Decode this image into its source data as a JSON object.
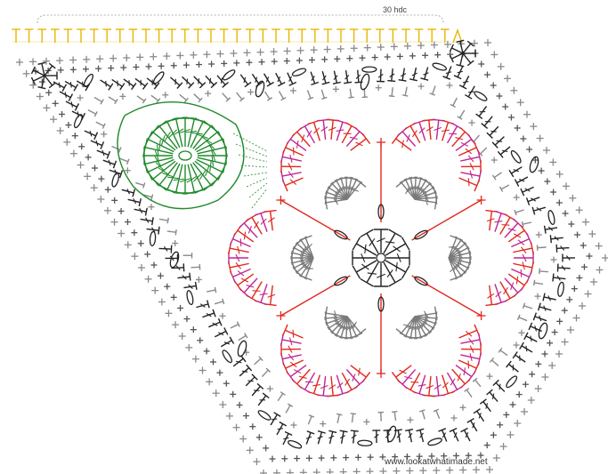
{
  "diagram": {
    "top_label": "30 hdc",
    "watermark": "www.lookatwhatimade.net",
    "colors": {
      "yellow": "#e8b600",
      "black": "#222222",
      "grey": "#8a8a8a",
      "red": "#e0281e",
      "magenta": "#c0268f",
      "green": "#1f8a2a"
    },
    "motifs": {
      "large_flower_petals": 6,
      "small_flower_petals": 3
    },
    "icons": [
      "hdc-stitch-symbol",
      "dc-stitch-symbol",
      "sc-cross-symbol",
      "chain-oval-symbol",
      "slip-stitch-dot"
    ]
  }
}
